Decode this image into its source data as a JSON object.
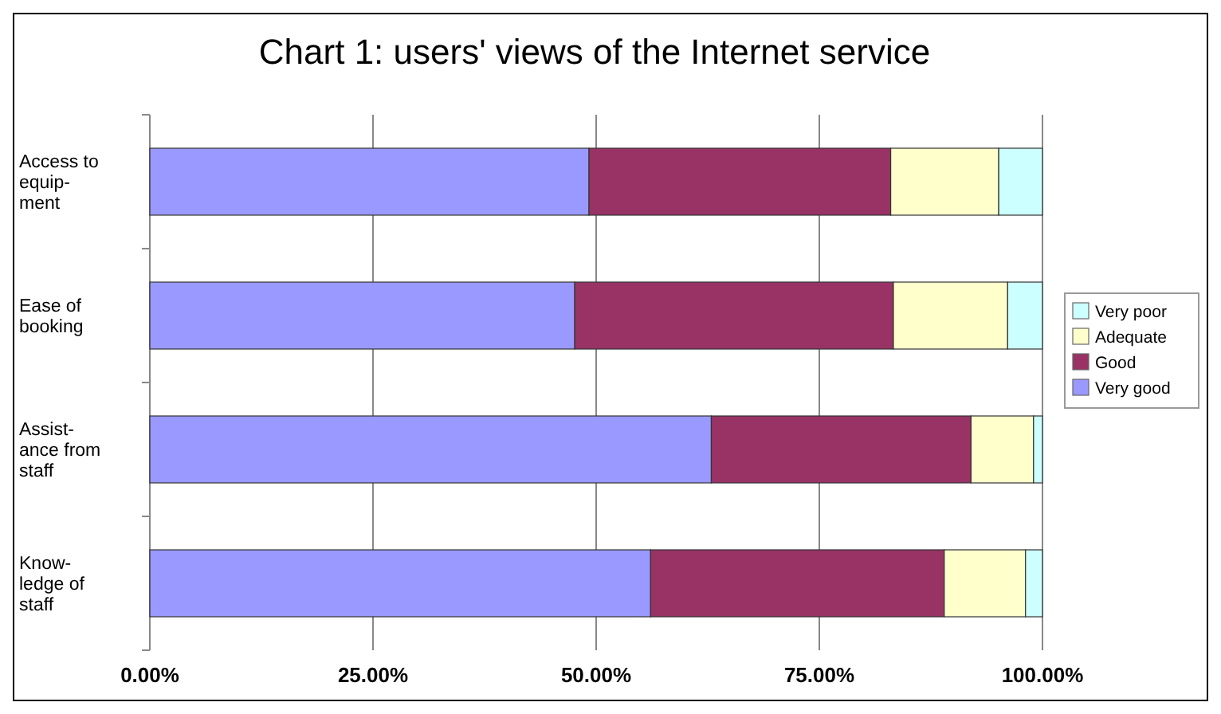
{
  "chart_data": {
    "type": "bar",
    "orientation": "horizontal",
    "stacked": true,
    "title": "Chart 1: users' views of the Internet service",
    "categories": [
      "Access to\nequip-\nment",
      "Ease of\nbooking",
      "Assist-\nance from\nstaff",
      "Know-\nledge of\nstaff"
    ],
    "series": [
      {
        "name": "Very good",
        "color": "#9999ff",
        "values": [
          49.2,
          47.6,
          62.9,
          56.1
        ]
      },
      {
        "name": "Good",
        "color": "#993366",
        "values": [
          33.8,
          35.7,
          29.1,
          32.9
        ]
      },
      {
        "name": "Adequate",
        "color": "#ffffcc",
        "values": [
          12.1,
          12.8,
          7.0,
          9.1
        ]
      },
      {
        "name": "Very poor",
        "color": "#ccffff",
        "values": [
          4.9,
          3.9,
          1.0,
          1.9
        ]
      }
    ],
    "xlim": [
      0,
      100
    ],
    "xticks": [
      {
        "value": 0,
        "label": "0.00%"
      },
      {
        "value": 25,
        "label": "25.00%"
      },
      {
        "value": 50,
        "label": "50.00%"
      },
      {
        "value": 75,
        "label": "75.00%"
      },
      {
        "value": 100,
        "label": "100.00%"
      }
    ],
    "grid": "x",
    "legend": "right"
  }
}
